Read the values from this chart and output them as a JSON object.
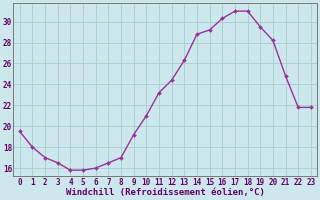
{
  "x": [
    0,
    1,
    2,
    3,
    4,
    5,
    6,
    7,
    8,
    9,
    10,
    11,
    12,
    13,
    14,
    15,
    16,
    17,
    18,
    19,
    20,
    21,
    22,
    23
  ],
  "y": [
    19.5,
    18.0,
    17.0,
    16.5,
    15.8,
    15.8,
    16.0,
    16.5,
    17.0,
    19.2,
    21.0,
    23.2,
    24.4,
    26.3,
    28.8,
    29.2,
    30.3,
    31.0,
    31.0,
    29.5,
    28.2,
    24.8,
    21.8,
    21.8
  ],
  "xlabel": "Windchill (Refroidissement éolien,°C)",
  "xlim": [
    -0.5,
    23.5
  ],
  "ylim": [
    15.2,
    31.8
  ],
  "yticks": [
    16,
    18,
    20,
    22,
    24,
    26,
    28,
    30
  ],
  "xticks": [
    0,
    1,
    2,
    3,
    4,
    5,
    6,
    7,
    8,
    9,
    10,
    11,
    12,
    13,
    14,
    15,
    16,
    17,
    18,
    19,
    20,
    21,
    22,
    23
  ],
  "line_color": "#993399",
  "marker": "D",
  "marker_size": 2.0,
  "bg_color": "#cce8ec",
  "grid_color": "#aacccc",
  "axis_color": "#777777",
  "label_color": "#660066",
  "label_fontsize": 6.5,
  "tick_fontsize": 5.5
}
